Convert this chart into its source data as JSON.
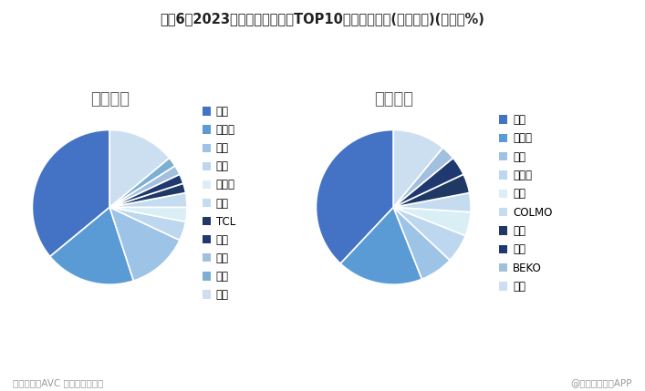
{
  "title": "图袈6：2023年中国洗衣机市场TOP10品牌市场份额(按零售额)(单位：%)",
  "left_title": "线上市场",
  "right_title": "线下市场",
  "footer_left": "资料来源：AVC 前瞻产业研究院",
  "footer_right": "@前瞻经济学人APP",
  "online_labels": [
    "海尔",
    "小天鹅",
    "美的",
    "松下",
    "西门子",
    "米家",
    "TCL",
    "志高",
    "海信",
    "康佳",
    "其他"
  ],
  "online_values": [
    36,
    19,
    13,
    4,
    3,
    3,
    2,
    2,
    2,
    2,
    14
  ],
  "online_colors": [
    "#4472C4",
    "#5B9BD5",
    "#9DC3E6",
    "#BDD7EE",
    "#DAEEF5",
    "#C5DCF0",
    "#1F3864",
    "#203870",
    "#A2C0DD",
    "#7BAFD4",
    "#CCDFF0"
  ],
  "offline_labels": [
    "海尔",
    "小天鹅",
    "松下",
    "西门子",
    "海信",
    "COLMO",
    "博世",
    "美的",
    "BEKO",
    "美菱"
  ],
  "offline_values": [
    38,
    18,
    7,
    6,
    5,
    4,
    4,
    4,
    3,
    11
  ],
  "offline_colors": [
    "#4472C4",
    "#5B9BD5",
    "#9DC3E6",
    "#BDD7EE",
    "#DAEEF5",
    "#C5DCF0",
    "#1F3864",
    "#203870",
    "#A2C0DD",
    "#CCDFF0"
  ],
  "background_color": "#FFFFFF",
  "title_fontsize": 10.5,
  "subtitle_fontsize": 13,
  "legend_fontsize": 8.5
}
